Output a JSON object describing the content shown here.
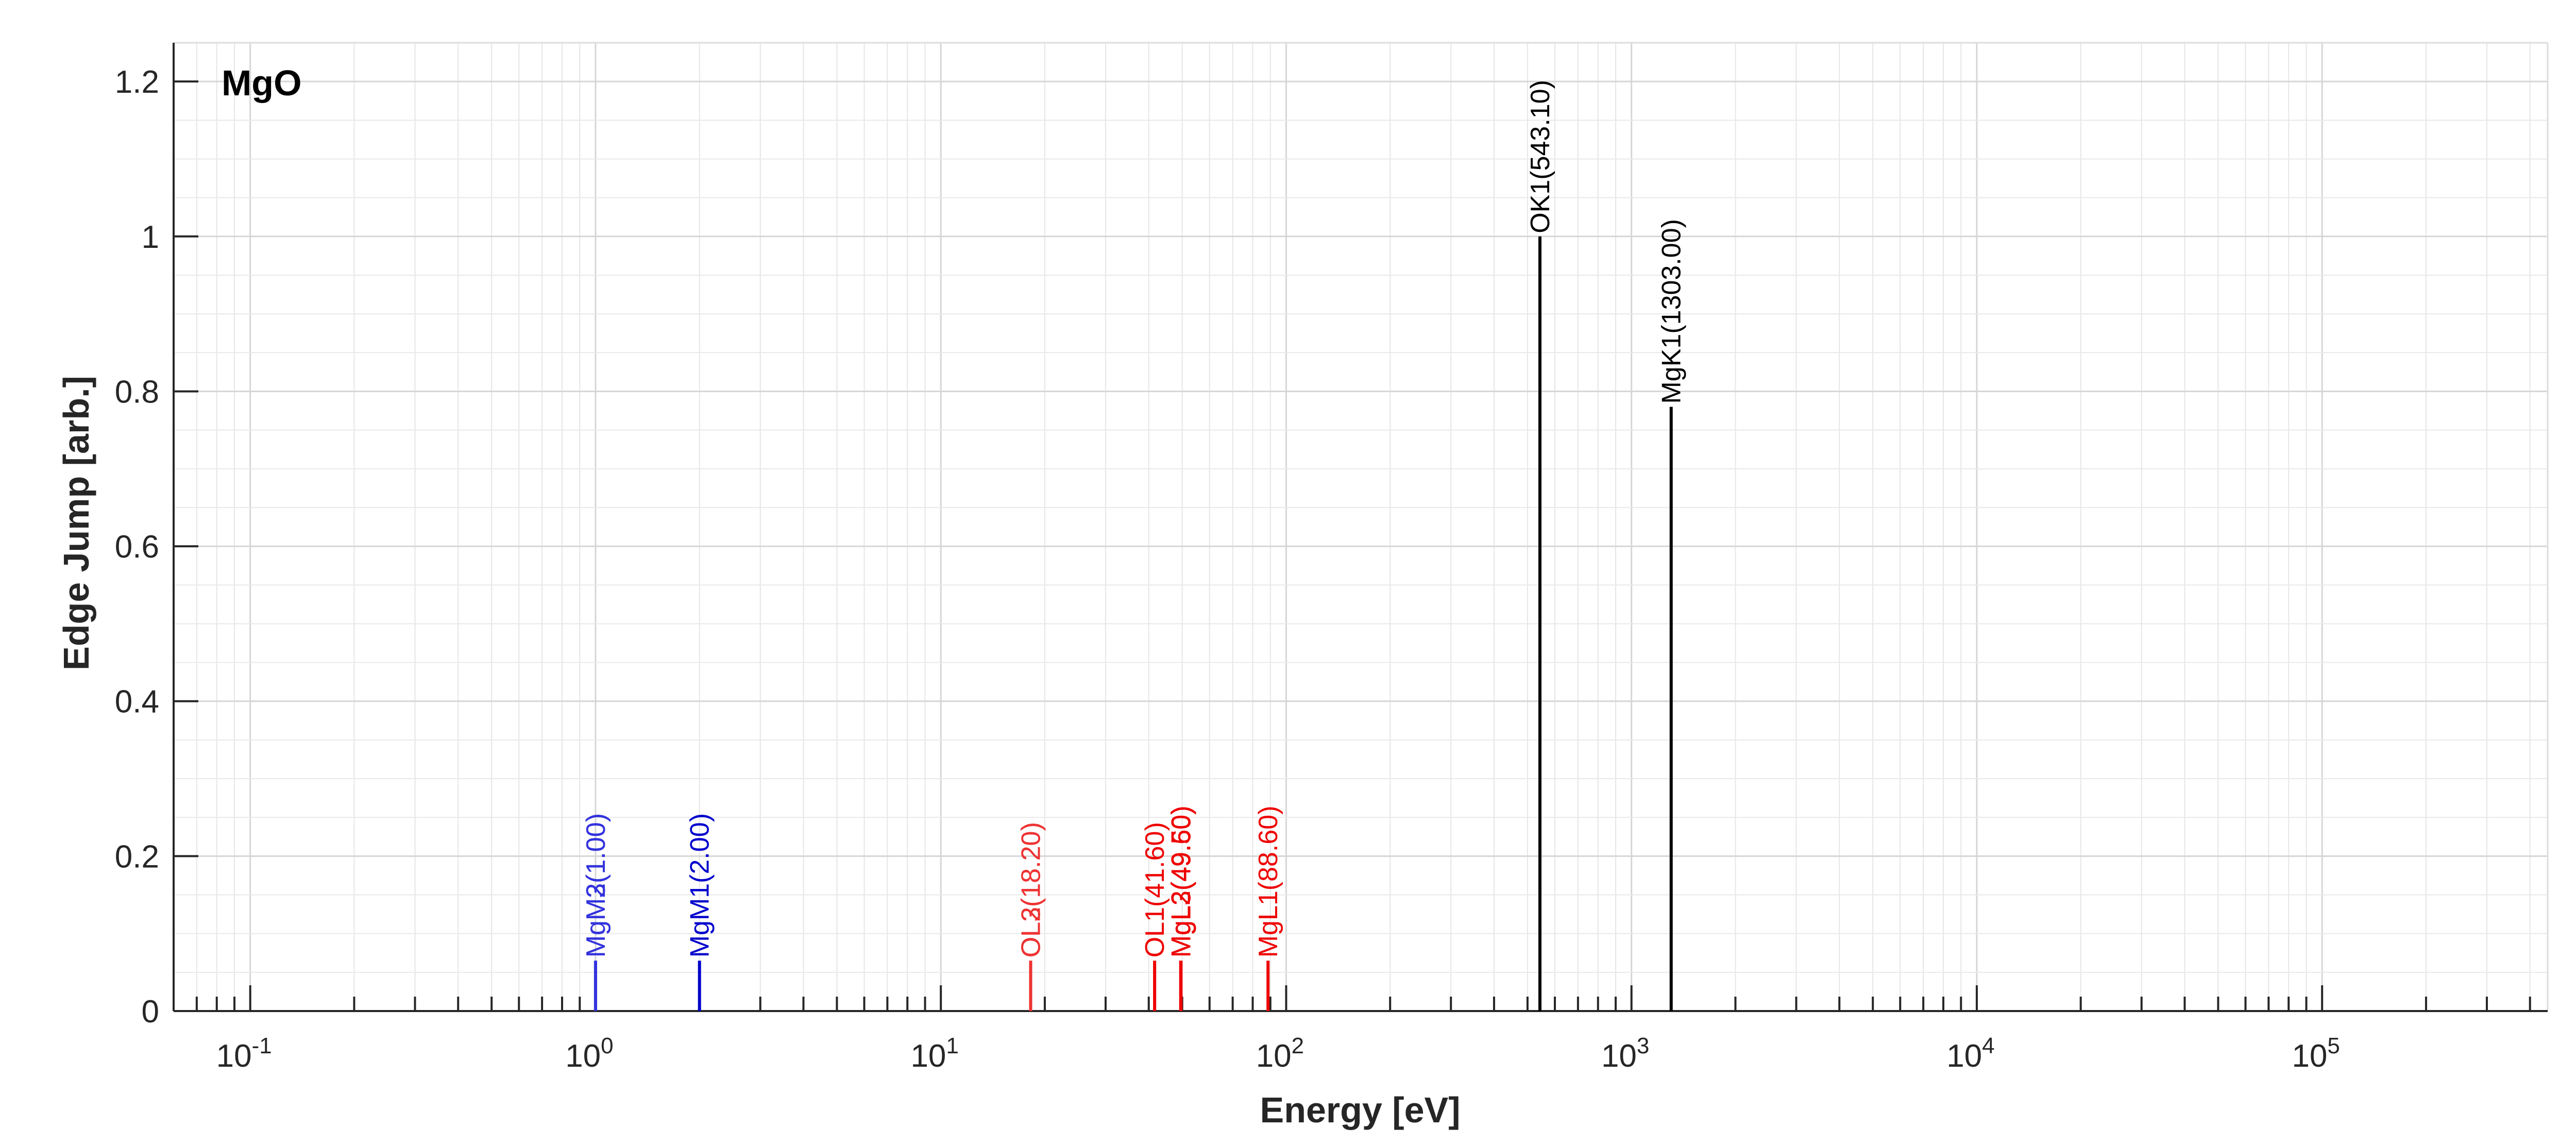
{
  "chart_data": {
    "type": "stem",
    "title": "MgO",
    "xlabel": "Energy [eV]",
    "ylabel": "Edge Jump [arb.]",
    "xscale": "log",
    "xlim": [
      0.06,
      450000
    ],
    "ylim": [
      0,
      1.25
    ],
    "x_tick_labels": [
      {
        "value": 0.1,
        "base": "10",
        "exp": "-1"
      },
      {
        "value": 1,
        "base": "10",
        "exp": "0"
      },
      {
        "value": 10,
        "base": "10",
        "exp": "1"
      },
      {
        "value": 100,
        "base": "10",
        "exp": "2"
      },
      {
        "value": 1000,
        "base": "10",
        "exp": "3"
      },
      {
        "value": 10000,
        "base": "10",
        "exp": "4"
      },
      {
        "value": 100000,
        "base": "10",
        "exp": "5"
      }
    ],
    "y_ticks": [
      {
        "value": 0,
        "label": "0"
      },
      {
        "value": 0.2,
        "label": "0.2"
      },
      {
        "value": 0.4,
        "label": "0.4"
      },
      {
        "value": 0.6,
        "label": "0.6"
      },
      {
        "value": 0.8,
        "label": "0.8"
      },
      {
        "value": 1,
        "label": "1"
      },
      {
        "value": 1.2,
        "label": "1.2"
      }
    ],
    "grid": true,
    "minor_grid": true,
    "edges": [
      {
        "label": "MgM2(1.00)",
        "energy": 1.0,
        "jump": 0.065,
        "color": "#3333dd"
      },
      {
        "label": "MgM3(1.00)",
        "energy": 1.0,
        "jump": 0.065,
        "color": "#3333dd"
      },
      {
        "label": "MgM1(2.00)",
        "energy": 2.0,
        "jump": 0.065,
        "color": "#0000cc"
      },
      {
        "label": "OL2(18.20)",
        "energy": 18.2,
        "jump": 0.065,
        "color": "#ee3333"
      },
      {
        "label": "OL3(18.20)",
        "energy": 18.2,
        "jump": 0.065,
        "color": "#ee3333"
      },
      {
        "label": "OL1(41.60)",
        "energy": 41.6,
        "jump": 0.065,
        "color": "#ee0000"
      },
      {
        "label": "MgL2(49.50)",
        "energy": 49.5,
        "jump": 0.065,
        "color": "#ee0000"
      },
      {
        "label": "MgL3(49.60)",
        "energy": 49.6,
        "jump": 0.065,
        "color": "#ee0000"
      },
      {
        "label": "MgL1(88.60)",
        "energy": 88.6,
        "jump": 0.065,
        "color": "#ee0000"
      },
      {
        "label": "OK1(543.10)",
        "energy": 543.1,
        "jump": 1.0,
        "color": "#000000"
      },
      {
        "label": "MgK1(1303.00)",
        "energy": 1303.0,
        "jump": 0.78,
        "color": "#000000"
      }
    ]
  }
}
